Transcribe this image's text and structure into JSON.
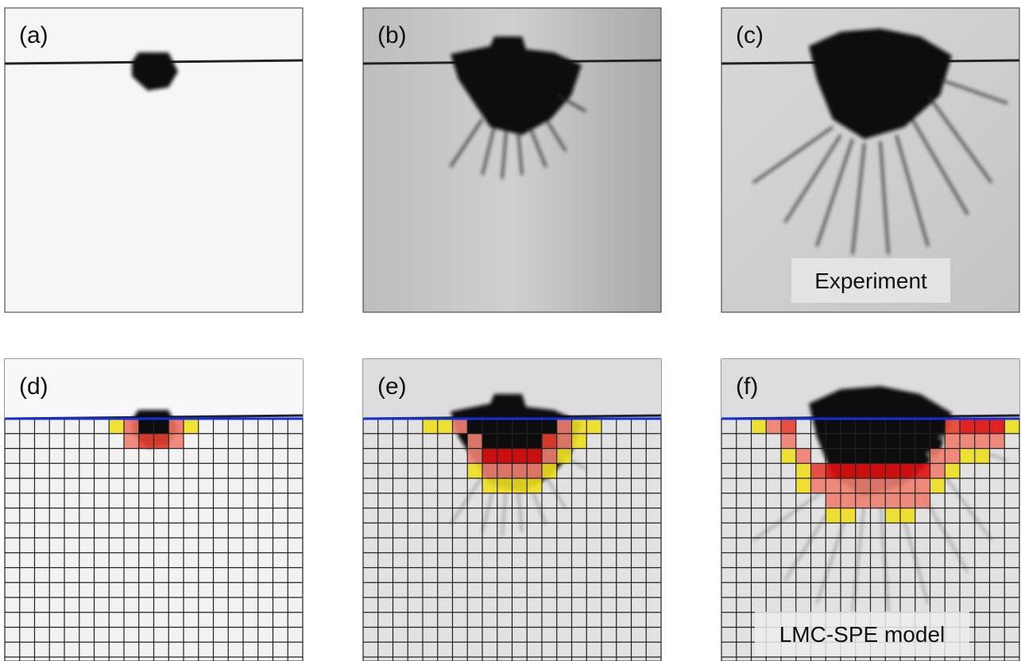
{
  "panels": [
    {
      "label": "(a)"
    },
    {
      "label": "(b)"
    },
    {
      "label": "(c)"
    },
    {
      "label": "(d)"
    },
    {
      "label": "(e)"
    },
    {
      "label": "(f)"
    }
  ],
  "captions": {
    "experiment": "Experiment",
    "model": "LMC-SPE model"
  }
}
